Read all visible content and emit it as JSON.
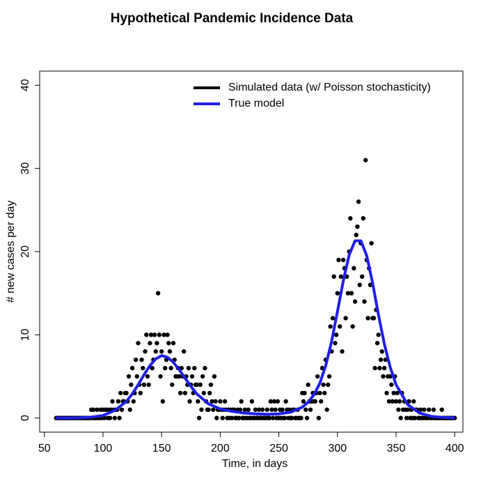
{
  "chart_data": {
    "type": "scatter",
    "title": "Hypothetical Pandemic Incidence Data",
    "x_label": "Time, in days",
    "y_label": "# new cases per day",
    "xlim": [
      46,
      407
    ],
    "ylim": [
      -1.7,
      41.7
    ],
    "xticks": [
      50,
      100,
      150,
      200,
      250,
      300,
      350,
      400
    ],
    "yticks": [
      0,
      10,
      20,
      30,
      40
    ],
    "legend": "topright",
    "series": [
      {
        "name": "Simulated data (w/ Poisson stochasticity)",
        "type": "scatter",
        "color": "#000000",
        "x": [
          60,
          61,
          62,
          63,
          64,
          65,
          66,
          67,
          68,
          69,
          70,
          71,
          72,
          73,
          74,
          75,
          76,
          77,
          78,
          79,
          80,
          81,
          82,
          83,
          84,
          85,
          86,
          87,
          88,
          89,
          90,
          91,
          92,
          93,
          94,
          95,
          96,
          97,
          98,
          99,
          100,
          101,
          102,
          103,
          104,
          105,
          106,
          107,
          108,
          109,
          110,
          111,
          112,
          113,
          114,
          115,
          116,
          117,
          118,
          119,
          120,
          121,
          122,
          123,
          124,
          125,
          126,
          127,
          128,
          129,
          130,
          131,
          132,
          133,
          134,
          135,
          136,
          137,
          138,
          139,
          140,
          141,
          142,
          143,
          144,
          145,
          146,
          147,
          148,
          149,
          150,
          151,
          152,
          153,
          154,
          155,
          156,
          157,
          158,
          159,
          160,
          161,
          162,
          163,
          164,
          165,
          166,
          167,
          168,
          169,
          170,
          171,
          172,
          173,
          174,
          175,
          176,
          177,
          178,
          179,
          180,
          181,
          182,
          183,
          184,
          185,
          186,
          187,
          188,
          189,
          190,
          191,
          192,
          193,
          194,
          195,
          196,
          197,
          198,
          199,
          200,
          201,
          202,
          203,
          204,
          205,
          206,
          207,
          208,
          209,
          210,
          211,
          212,
          213,
          214,
          215,
          216,
          217,
          218,
          219,
          220,
          221,
          222,
          223,
          224,
          225,
          226,
          227,
          228,
          229,
          230,
          231,
          232,
          233,
          234,
          235,
          236,
          237,
          238,
          239,
          240,
          241,
          242,
          243,
          244,
          245,
          246,
          247,
          248,
          249,
          250,
          251,
          252,
          253,
          254,
          255,
          256,
          257,
          258,
          259,
          260,
          261,
          262,
          263,
          264,
          265,
          266,
          267,
          268,
          269,
          270,
          271,
          272,
          273,
          274,
          275,
          276,
          277,
          278,
          279,
          280,
          281,
          282,
          283,
          284,
          285,
          286,
          287,
          288,
          289,
          290,
          291,
          292,
          293,
          294,
          295,
          296,
          297,
          298,
          299,
          300,
          301,
          302,
          303,
          304,
          305,
          306,
          307,
          308,
          309,
          310,
          311,
          312,
          313,
          314,
          315,
          316,
          317,
          318,
          319,
          320,
          321,
          322,
          323,
          324,
          325,
          326,
          327,
          328,
          329,
          330,
          331,
          332,
          333,
          334,
          335,
          336,
          337,
          338,
          339,
          340,
          341,
          342,
          343,
          344,
          345,
          346,
          347,
          348,
          349,
          350,
          351,
          352,
          353,
          354,
          355,
          356,
          357,
          358,
          359,
          360,
          361,
          362,
          363,
          364,
          365,
          366,
          367,
          368,
          369,
          370,
          371,
          372,
          373,
          374,
          375,
          376,
          377,
          378,
          379,
          380,
          381,
          382,
          383,
          384,
          385,
          386,
          387,
          388,
          389,
          390,
          391,
          392,
          393,
          394,
          395,
          396,
          397,
          398,
          399,
          400
        ],
        "values": [
          0,
          0,
          0,
          0,
          0,
          0,
          0,
          0,
          0,
          0,
          0,
          0,
          0,
          0,
          0,
          0,
          0,
          0,
          0,
          0,
          0,
          0,
          0,
          0,
          0,
          0,
          0,
          0,
          0,
          0,
          1,
          0,
          1,
          0,
          0,
          1,
          0,
          0,
          1,
          0,
          1,
          0,
          1,
          1,
          0,
          1,
          0,
          1,
          2,
          1,
          0,
          1,
          1,
          2,
          0,
          3,
          1,
          2,
          2,
          3,
          3,
          2,
          5,
          1,
          4,
          6,
          2,
          3,
          7,
          5,
          9,
          4,
          3,
          7,
          6,
          4,
          8,
          10,
          5,
          4,
          9,
          10,
          6,
          7,
          10,
          8,
          9,
          15,
          10,
          5,
          8,
          2,
          10,
          6,
          7,
          10,
          9,
          8,
          6,
          4,
          9,
          7,
          5,
          5,
          6,
          5,
          3,
          6,
          5,
          8,
          3,
          5,
          4,
          6,
          2,
          4,
          5,
          3,
          6,
          4,
          4,
          2,
          0,
          4,
          1,
          5,
          3,
          6,
          2,
          1,
          1,
          3,
          4,
          2,
          1,
          5,
          2,
          0,
          1,
          1,
          2,
          1,
          0,
          1,
          2,
          1,
          0,
          1,
          0,
          1,
          0,
          1,
          1,
          0,
          0,
          1,
          0,
          1,
          2,
          0,
          0,
          1,
          0,
          0,
          1,
          0,
          0,
          2,
          0,
          0,
          1,
          0,
          0,
          1,
          0,
          0,
          1,
          0,
          0,
          0,
          1,
          0,
          0,
          2,
          1,
          0,
          2,
          1,
          0,
          2,
          0,
          1,
          0,
          1,
          0,
          0,
          2,
          1,
          0,
          1,
          0,
          0,
          1,
          1,
          0,
          0,
          1,
          0,
          0,
          0,
          3,
          2,
          3,
          1,
          0,
          4,
          2,
          1,
          2,
          3,
          2,
          2,
          3,
          5,
          0,
          3,
          2,
          6,
          4,
          3,
          7,
          1,
          4,
          5,
          11,
          8,
          12,
          17,
          9,
          10,
          15,
          19,
          11,
          17,
          8,
          19,
          18,
          12,
          17,
          15,
          20,
          24,
          15,
          11,
          18,
          14,
          22,
          23,
          26,
          16,
          21,
          17,
          24,
          14,
          31,
          19,
          12,
          18,
          16,
          21,
          12,
          12,
          6,
          13,
          9,
          10,
          6,
          7,
          8,
          5,
          6,
          7,
          3,
          5,
          2,
          5,
          4,
          2,
          3,
          5,
          2,
          3,
          1,
          2,
          0,
          3,
          1,
          2,
          1,
          0,
          1,
          2,
          0,
          1,
          0,
          2,
          0,
          1,
          1,
          0,
          0,
          1,
          0,
          0,
          1,
          0,
          0,
          0,
          1,
          0,
          0,
          0,
          1,
          0,
          0,
          0,
          0,
          0,
          0,
          1,
          0,
          0,
          0,
          0,
          0,
          0,
          0,
          0,
          0,
          0,
          0
        ]
      },
      {
        "name": "True model",
        "type": "line",
        "color": "#1f1fe6",
        "x": [
          60,
          70,
          80,
          90,
          100,
          110,
          120,
          125,
          130,
          135,
          140,
          145,
          150,
          155,
          160,
          165,
          170,
          175,
          180,
          190,
          200,
          210,
          220,
          230,
          240,
          250,
          260,
          270,
          275,
          280,
          285,
          290,
          295,
          300,
          305,
          310,
          315,
          320,
          325,
          330,
          335,
          340,
          345,
          350,
          360,
          370,
          380,
          390,
          400
        ],
        "values": [
          0,
          0,
          0.02,
          0.1,
          0.3,
          0.9,
          2.0,
          2.9,
          4.0,
          5.2,
          6.3,
          7.1,
          7.5,
          7.3,
          6.7,
          5.8,
          4.8,
          3.8,
          2.9,
          1.7,
          1.1,
          0.8,
          0.6,
          0.5,
          0.45,
          0.5,
          0.7,
          1.3,
          1.9,
          2.8,
          4.2,
          6.3,
          9.2,
          12.8,
          16.5,
          19.6,
          21.3,
          21.3,
          19.5,
          16.2,
          12.4,
          8.9,
          6.1,
          4.0,
          1.6,
          0.6,
          0.2,
          0.07,
          0.02
        ]
      }
    ]
  }
}
